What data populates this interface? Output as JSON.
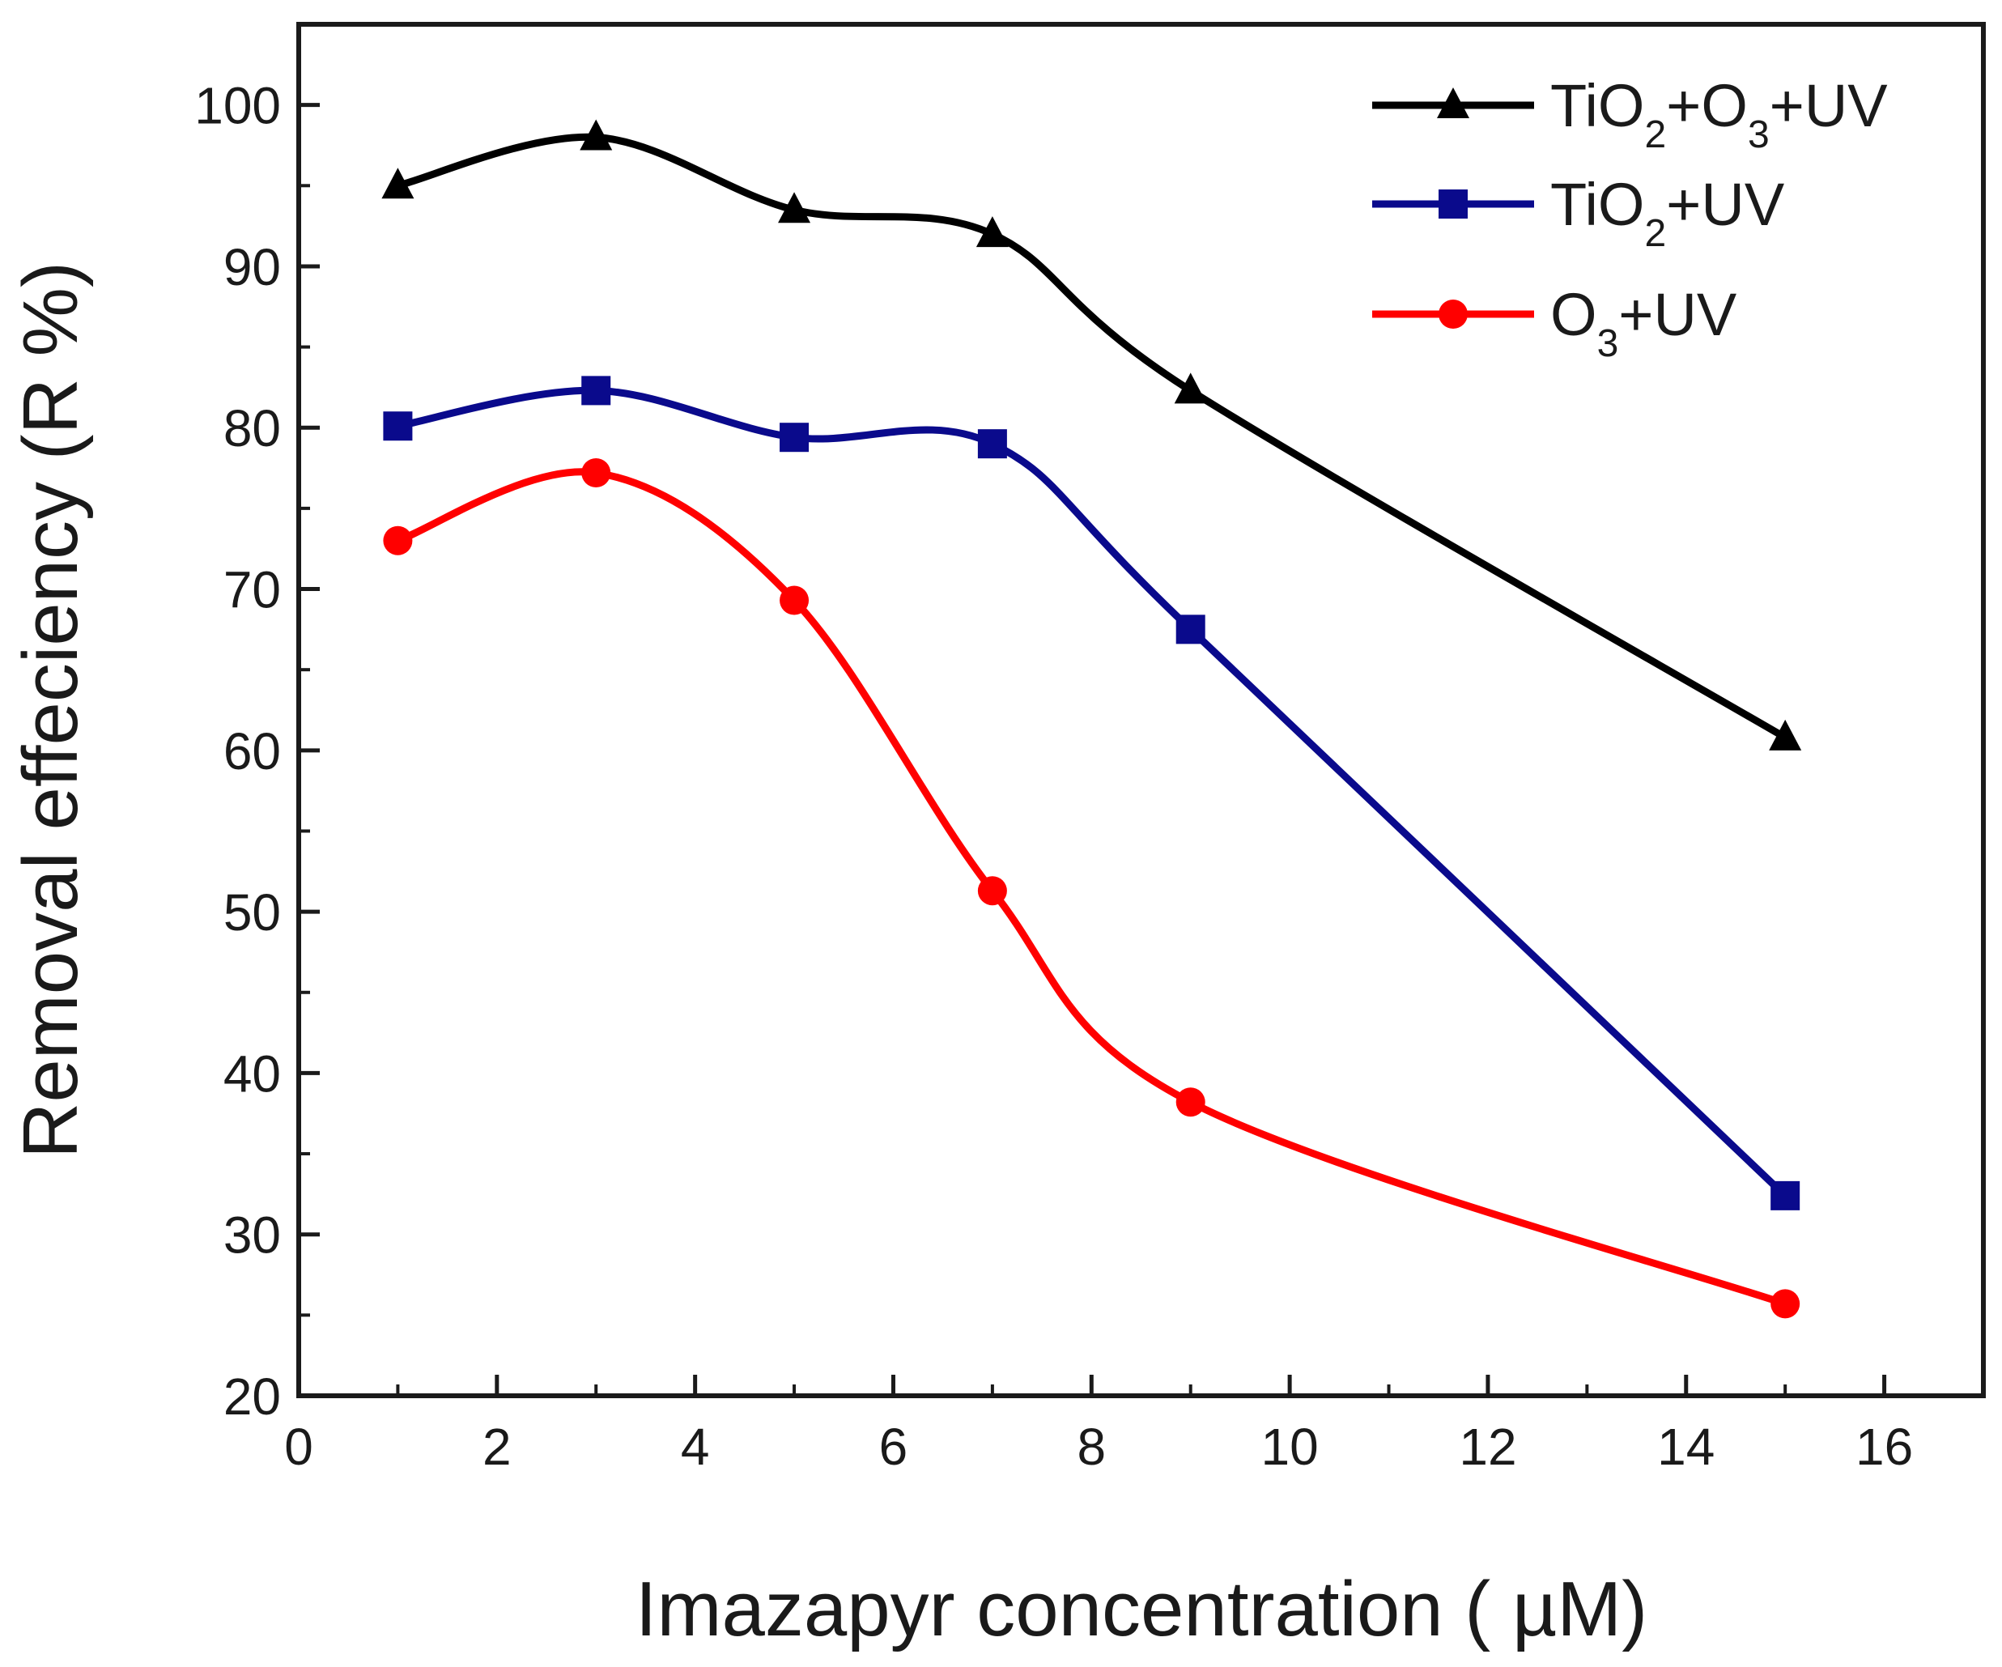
{
  "chart_data": {
    "type": "line",
    "title": "",
    "xlabel": "Imazapyr concentration ( µM)",
    "ylabel": "Removal effeciency (R %)",
    "xlim": [
      0,
      17
    ],
    "ylim": [
      20,
      105
    ],
    "x_ticks": [
      "0",
      "2",
      "4",
      "6",
      "8",
      "10",
      "12",
      "14",
      "16"
    ],
    "y_ticks": [
      "20",
      "30",
      "40",
      "50",
      "60",
      "70",
      "80",
      "90",
      "100"
    ],
    "x": [
      1,
      3,
      5,
      7,
      9,
      15
    ],
    "series": [
      {
        "name": "TiO2+O3+UV",
        "color": "#000000",
        "marker": "triangle",
        "values": [
          95,
          98,
          93.5,
          92,
          82.3,
          60.8
        ]
      },
      {
        "name": "TiO2+UV",
        "color": "#0a0a8c",
        "marker": "square",
        "values": [
          80.1,
          82.3,
          79.4,
          79,
          67.5,
          32.4
        ]
      },
      {
        "name": "O3+UV",
        "color": "#ff0000",
        "marker": "circle",
        "values": [
          73,
          77.2,
          69.3,
          51.3,
          38.2,
          25.7
        ]
      }
    ],
    "legend": [
      {
        "parts": [
          {
            "t": "TiO"
          },
          {
            "t": "2",
            "sub": true
          },
          {
            "t": "+O"
          },
          {
            "t": "3",
            "sub": true
          },
          {
            "t": "+UV"
          }
        ]
      },
      {
        "parts": [
          {
            "t": "TiO"
          },
          {
            "t": "2",
            "sub": true
          },
          {
            "t": "+UV"
          }
        ]
      },
      {
        "parts": [
          {
            "t": "O"
          },
          {
            "t": "3",
            "sub": true
          },
          {
            "t": "+UV"
          }
        ]
      }
    ],
    "legend_position": "top-right",
    "grid": false
  }
}
